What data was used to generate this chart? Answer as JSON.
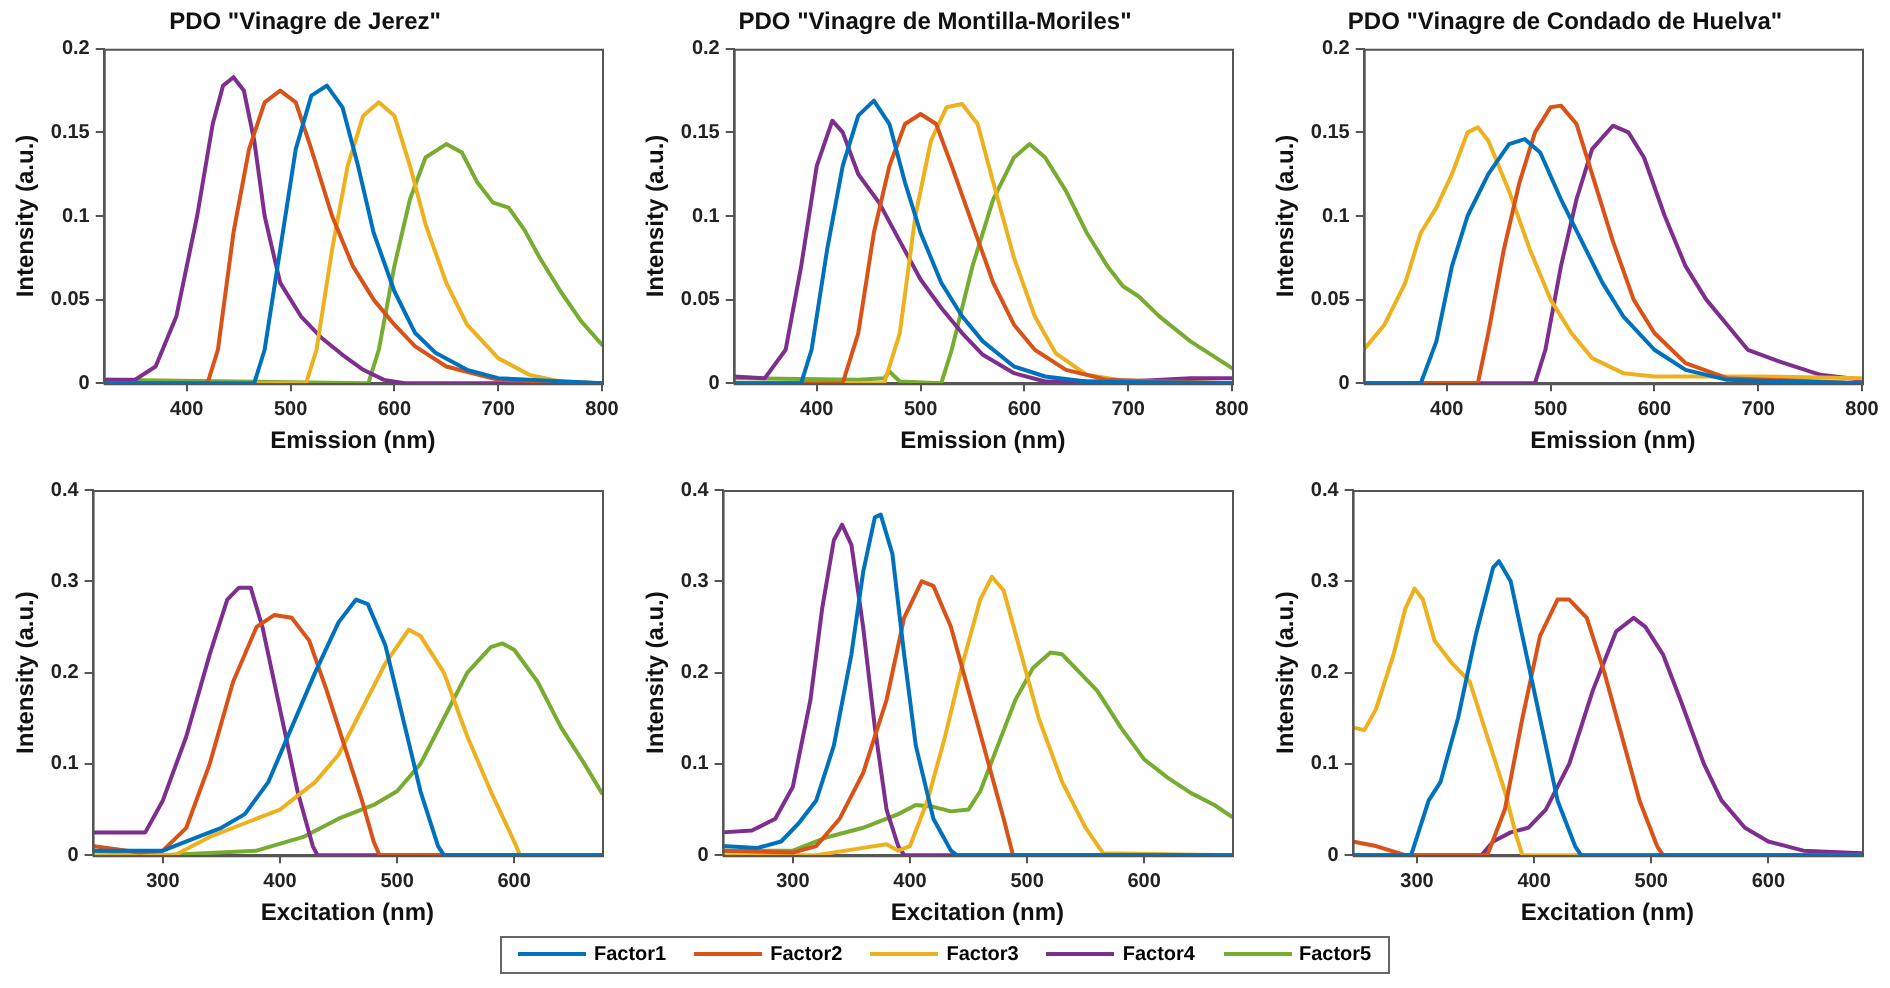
{
  "chart_data": [
    {
      "type": "line",
      "title": "PDO \"Vinagre de Jerez\"",
      "xlabel": "Emission (nm)",
      "ylabel": "Intensity (a.u.)",
      "xlim": [
        320,
        800
      ],
      "xticks": [
        400,
        500,
        600,
        700,
        800
      ],
      "ylim": [
        0,
        0.2
      ],
      "yticks": [
        0,
        0.05,
        0.1,
        0.15,
        0.2
      ],
      "legend": "bottom",
      "series": [
        {
          "name": "Factor1",
          "color": "#0072bd",
          "x": [
            320,
            465,
            475,
            490,
            505,
            520,
            535,
            550,
            565,
            580,
            600,
            620,
            640,
            670,
            700,
            800
          ],
          "values": [
            0,
            0,
            0.02,
            0.08,
            0.14,
            0.172,
            0.178,
            0.165,
            0.13,
            0.09,
            0.055,
            0.03,
            0.018,
            0.008,
            0.003,
            0
          ]
        },
        {
          "name": "Factor2",
          "color": "#d95319",
          "x": [
            320,
            420,
            430,
            445,
            460,
            475,
            490,
            505,
            520,
            540,
            560,
            580,
            600,
            620,
            650,
            700,
            800
          ],
          "values": [
            0,
            0,
            0.02,
            0.09,
            0.14,
            0.168,
            0.175,
            0.168,
            0.14,
            0.1,
            0.07,
            0.05,
            0.035,
            0.022,
            0.01,
            0.002,
            0
          ]
        },
        {
          "name": "Factor3",
          "color": "#edb120",
          "x": [
            320,
            515,
            525,
            540,
            555,
            570,
            585,
            600,
            615,
            630,
            650,
            670,
            700,
            730,
            760,
            800
          ],
          "values": [
            0,
            0,
            0.02,
            0.08,
            0.13,
            0.16,
            0.168,
            0.16,
            0.13,
            0.095,
            0.06,
            0.035,
            0.015,
            0.005,
            0.001,
            0
          ]
        },
        {
          "name": "Factor4",
          "color": "#7e2f8e",
          "x": [
            320,
            350,
            370,
            390,
            410,
            425,
            435,
            445,
            455,
            465,
            475,
            490,
            510,
            530,
            550,
            570,
            590,
            610,
            800
          ],
          "values": [
            0.002,
            0.002,
            0.01,
            0.04,
            0.1,
            0.155,
            0.178,
            0.183,
            0.175,
            0.145,
            0.1,
            0.06,
            0.04,
            0.027,
            0.017,
            0.008,
            0.002,
            0,
            0
          ]
        },
        {
          "name": "Factor5",
          "color": "#77ac30",
          "x": [
            320,
            575,
            585,
            600,
            615,
            630,
            650,
            665,
            680,
            695,
            710,
            725,
            740,
            760,
            780,
            800
          ],
          "values": [
            0.002,
            0,
            0.02,
            0.07,
            0.11,
            0.135,
            0.143,
            0.138,
            0.12,
            0.108,
            0.105,
            0.092,
            0.075,
            0.055,
            0.037,
            0.023
          ]
        }
      ]
    },
    {
      "type": "line",
      "title": "PDO \"Vinagre de Montilla-Moriles\"",
      "xlabel": "Emission (nm)",
      "ylabel": "Intensity (a.u.)",
      "xlim": [
        320,
        800
      ],
      "xticks": [
        400,
        500,
        600,
        700,
        800
      ],
      "ylim": [
        0,
        0.2
      ],
      "yticks": [
        0,
        0.05,
        0.1,
        0.15,
        0.2
      ],
      "series": [
        {
          "color": "#0072bd",
          "x": [
            320,
            385,
            395,
            410,
            425,
            440,
            455,
            470,
            485,
            500,
            520,
            540,
            560,
            590,
            620,
            660,
            800
          ],
          "values": [
            0,
            0,
            0.02,
            0.08,
            0.13,
            0.16,
            0.169,
            0.155,
            0.12,
            0.09,
            0.06,
            0.04,
            0.025,
            0.01,
            0.004,
            0.001,
            0
          ]
        },
        {
          "color": "#d95319",
          "x": [
            320,
            425,
            440,
            455,
            470,
            485,
            500,
            515,
            530,
            550,
            570,
            590,
            610,
            640,
            680,
            800
          ],
          "values": [
            0,
            0,
            0.03,
            0.09,
            0.13,
            0.155,
            0.161,
            0.155,
            0.13,
            0.095,
            0.06,
            0.035,
            0.02,
            0.008,
            0.002,
            0
          ]
        },
        {
          "color": "#edb120",
          "x": [
            320,
            465,
            480,
            495,
            510,
            525,
            540,
            555,
            570,
            590,
            610,
            630,
            660,
            700,
            800
          ],
          "values": [
            0,
            0,
            0.03,
            0.1,
            0.145,
            0.165,
            0.167,
            0.155,
            0.12,
            0.075,
            0.04,
            0.018,
            0.005,
            0.001,
            0
          ]
        },
        {
          "color": "#7e2f8e",
          "x": [
            320,
            350,
            370,
            385,
            400,
            415,
            425,
            440,
            460,
            480,
            500,
            520,
            540,
            560,
            590,
            620,
            700,
            760,
            800
          ],
          "values": [
            0.004,
            0.003,
            0.02,
            0.07,
            0.13,
            0.157,
            0.15,
            0.125,
            0.108,
            0.085,
            0.062,
            0.045,
            0.03,
            0.017,
            0.006,
            0.001,
            0.001,
            0.003,
            0.003
          ]
        },
        {
          "color": "#77ac30",
          "x": [
            320,
            440,
            465,
            470,
            480,
            520,
            530,
            550,
            570,
            590,
            605,
            620,
            640,
            660,
            680,
            695,
            710,
            730,
            760,
            800
          ],
          "values": [
            0.003,
            0.002,
            0.003,
            0.007,
            0.001,
            0,
            0.02,
            0.07,
            0.11,
            0.135,
            0.143,
            0.135,
            0.115,
            0.09,
            0.07,
            0.058,
            0.052,
            0.04,
            0.025,
            0.009
          ]
        }
      ]
    },
    {
      "type": "line",
      "title": "PDO \"Vinagre de Condado de Huelva\"",
      "xlabel": "Emission (nm)",
      "ylabel": "Intensity (a.u.)",
      "xlim": [
        320,
        800
      ],
      "xticks": [
        400,
        500,
        600,
        700,
        800
      ],
      "ylim": [
        0,
        0.2
      ],
      "yticks": [
        0,
        0.05,
        0.1,
        0.15,
        0.2
      ],
      "series": [
        {
          "color": "#0072bd",
          "x": [
            320,
            375,
            390,
            405,
            420,
            440,
            460,
            475,
            490,
            510,
            530,
            550,
            570,
            600,
            630,
            670,
            800
          ],
          "values": [
            0,
            0,
            0.025,
            0.07,
            0.1,
            0.125,
            0.143,
            0.146,
            0.138,
            0.11,
            0.085,
            0.06,
            0.04,
            0.02,
            0.008,
            0.002,
            0
          ]
        },
        {
          "color": "#d95319",
          "x": [
            320,
            430,
            440,
            455,
            470,
            485,
            500,
            510,
            525,
            540,
            560,
            580,
            600,
            630,
            670,
            800
          ],
          "values": [
            0,
            0,
            0.03,
            0.08,
            0.12,
            0.15,
            0.165,
            0.166,
            0.155,
            0.125,
            0.085,
            0.05,
            0.03,
            0.012,
            0.003,
            0
          ]
        },
        {
          "color": "#edb120",
          "x": [
            320,
            340,
            360,
            375,
            390,
            405,
            420,
            430,
            440,
            460,
            480,
            500,
            520,
            540,
            570,
            600,
            700,
            800
          ],
          "values": [
            0.02,
            0.035,
            0.06,
            0.09,
            0.105,
            0.125,
            0.15,
            0.153,
            0.145,
            0.115,
            0.08,
            0.05,
            0.03,
            0.015,
            0.006,
            0.004,
            0.004,
            0.003
          ]
        },
        {
          "color": "#7e2f8e",
          "x": [
            320,
            485,
            495,
            510,
            525,
            540,
            560,
            575,
            590,
            610,
            630,
            650,
            670,
            690,
            720,
            760,
            800
          ],
          "values": [
            0,
            0,
            0.02,
            0.07,
            0.11,
            0.14,
            0.154,
            0.15,
            0.135,
            0.1,
            0.07,
            0.05,
            0.035,
            0.02,
            0.013,
            0.005,
            0.002
          ]
        }
      ]
    },
    {
      "type": "line",
      "xlabel": "Excitation (nm)",
      "ylabel": "Intensity (a.u.)",
      "xlim": [
        240,
        675
      ],
      "xticks": [
        300,
        400,
        500,
        600
      ],
      "ylim": [
        0,
        0.4
      ],
      "yticks": [
        0,
        0.1,
        0.2,
        0.3,
        0.4
      ],
      "series": [
        {
          "color": "#0072bd",
          "x": [
            240,
            300,
            330,
            350,
            370,
            390,
            410,
            430,
            450,
            465,
            475,
            490,
            505,
            520,
            535,
            540,
            675
          ],
          "values": [
            0.005,
            0.005,
            0.02,
            0.03,
            0.045,
            0.08,
            0.14,
            0.2,
            0.255,
            0.28,
            0.275,
            0.23,
            0.15,
            0.07,
            0.01,
            0,
            0
          ]
        },
        {
          "color": "#d95319",
          "x": [
            240,
            280,
            300,
            320,
            340,
            360,
            380,
            395,
            410,
            425,
            440,
            455,
            470,
            480,
            485,
            675
          ],
          "values": [
            0.01,
            0.003,
            0.005,
            0.03,
            0.1,
            0.19,
            0.25,
            0.263,
            0.26,
            0.235,
            0.18,
            0.12,
            0.06,
            0.015,
            0,
            0
          ]
        },
        {
          "color": "#edb120",
          "x": [
            240,
            310,
            340,
            370,
            400,
            430,
            450,
            470,
            490,
            510,
            520,
            540,
            560,
            580,
            600,
            605,
            675
          ],
          "values": [
            0,
            0,
            0.02,
            0.035,
            0.05,
            0.08,
            0.11,
            0.16,
            0.21,
            0.247,
            0.24,
            0.2,
            0.13,
            0.07,
            0.015,
            0,
            0
          ]
        },
        {
          "color": "#7e2f8e",
          "x": [
            240,
            285,
            300,
            320,
            340,
            355,
            365,
            375,
            385,
            400,
            415,
            428,
            432,
            675
          ],
          "values": [
            0.025,
            0.025,
            0.06,
            0.13,
            0.22,
            0.28,
            0.293,
            0.293,
            0.25,
            0.16,
            0.07,
            0.01,
            0,
            0
          ]
        },
        {
          "color": "#77ac30",
          "x": [
            240,
            300,
            380,
            420,
            450,
            480,
            500,
            520,
            540,
            560,
            580,
            590,
            600,
            620,
            640,
            660,
            675
          ],
          "values": [
            0.005,
            0,
            0.005,
            0.02,
            0.04,
            0.055,
            0.07,
            0.1,
            0.15,
            0.2,
            0.228,
            0.232,
            0.225,
            0.19,
            0.14,
            0.1,
            0.068
          ]
        }
      ]
    },
    {
      "type": "line",
      "xlabel": "Excitation (nm)",
      "ylabel": "Intensity (a.u.)",
      "xlim": [
        240,
        675
      ],
      "xticks": [
        300,
        400,
        500,
        600
      ],
      "ylim": [
        0,
        0.4
      ],
      "yticks": [
        0,
        0.1,
        0.2,
        0.3,
        0.4
      ],
      "series": [
        {
          "color": "#0072bd",
          "x": [
            240,
            270,
            290,
            305,
            320,
            335,
            350,
            360,
            370,
            375,
            385,
            395,
            405,
            420,
            435,
            440,
            675
          ],
          "values": [
            0.01,
            0.008,
            0.015,
            0.035,
            0.06,
            0.12,
            0.22,
            0.31,
            0.37,
            0.373,
            0.33,
            0.22,
            0.12,
            0.04,
            0.005,
            0,
            0
          ]
        },
        {
          "color": "#d95319",
          "x": [
            240,
            300,
            320,
            340,
            360,
            380,
            395,
            410,
            420,
            435,
            450,
            465,
            480,
            488,
            675
          ],
          "values": [
            0.005,
            0.003,
            0.01,
            0.04,
            0.09,
            0.17,
            0.26,
            0.3,
            0.295,
            0.25,
            0.18,
            0.11,
            0.04,
            0,
            0
          ]
        },
        {
          "color": "#edb120",
          "x": [
            240,
            320,
            360,
            380,
            390,
            400,
            415,
            430,
            445,
            460,
            470,
            480,
            495,
            510,
            530,
            550,
            565,
            675
          ],
          "values": [
            0,
            0,
            0.008,
            0.012,
            0.005,
            0.01,
            0.06,
            0.13,
            0.21,
            0.28,
            0.305,
            0.29,
            0.22,
            0.15,
            0.08,
            0.03,
            0.002,
            0
          ]
        },
        {
          "color": "#7e2f8e",
          "x": [
            240,
            265,
            285,
            300,
            315,
            325,
            335,
            342,
            350,
            360,
            370,
            380,
            390,
            395,
            675
          ],
          "values": [
            0.025,
            0.027,
            0.04,
            0.075,
            0.17,
            0.27,
            0.345,
            0.362,
            0.34,
            0.25,
            0.14,
            0.05,
            0.01,
            0,
            0
          ]
        },
        {
          "color": "#77ac30",
          "x": [
            240,
            300,
            330,
            360,
            390,
            405,
            420,
            435,
            450,
            460,
            475,
            490,
            505,
            520,
            530,
            545,
            560,
            580,
            600,
            620,
            640,
            660,
            675
          ],
          "values": [
            0.005,
            0.005,
            0.02,
            0.03,
            0.045,
            0.055,
            0.053,
            0.048,
            0.05,
            0.07,
            0.12,
            0.17,
            0.205,
            0.222,
            0.22,
            0.2,
            0.18,
            0.14,
            0.105,
            0.085,
            0.068,
            0.055,
            0.042
          ]
        }
      ]
    },
    {
      "type": "line",
      "xlabel": "Excitation (nm)",
      "ylabel": "Intensity (a.u.)",
      "xlim": [
        245,
        680
      ],
      "xticks": [
        300,
        400,
        500,
        600
      ],
      "ylim": [
        0,
        0.4
      ],
      "yticks": [
        0,
        0.1,
        0.2,
        0.3,
        0.4
      ],
      "series": [
        {
          "color": "#0072bd",
          "x": [
            245,
            295,
            300,
            310,
            320,
            335,
            350,
            365,
            370,
            380,
            390,
            405,
            420,
            435,
            440,
            680
          ],
          "values": [
            0,
            0,
            0.02,
            0.06,
            0.08,
            0.15,
            0.24,
            0.315,
            0.322,
            0.3,
            0.24,
            0.15,
            0.06,
            0.01,
            0,
            0
          ]
        },
        {
          "color": "#d95319",
          "x": [
            245,
            265,
            290,
            360,
            375,
            390,
            405,
            420,
            430,
            445,
            460,
            475,
            490,
            505,
            510,
            680
          ],
          "values": [
            0.015,
            0.01,
            0,
            0,
            0.05,
            0.15,
            0.24,
            0.28,
            0.28,
            0.26,
            0.2,
            0.13,
            0.06,
            0.01,
            0,
            0
          ]
        },
        {
          "color": "#edb120",
          "x": [
            245,
            255,
            265,
            280,
            290,
            298,
            305,
            315,
            330,
            345,
            355,
            365,
            375,
            385,
            390,
            680
          ],
          "values": [
            0.14,
            0.137,
            0.16,
            0.22,
            0.27,
            0.292,
            0.28,
            0.235,
            0.21,
            0.19,
            0.15,
            0.11,
            0.07,
            0.02,
            0,
            0
          ]
        },
        {
          "color": "#7e2f8e",
          "x": [
            245,
            355,
            365,
            380,
            395,
            410,
            430,
            450,
            470,
            485,
            495,
            510,
            525,
            545,
            560,
            580,
            600,
            630,
            680
          ],
          "values": [
            0,
            0,
            0.015,
            0.025,
            0.03,
            0.05,
            0.1,
            0.18,
            0.245,
            0.26,
            0.25,
            0.22,
            0.17,
            0.1,
            0.06,
            0.03,
            0.015,
            0.005,
            0.002
          ]
        }
      ]
    }
  ]
}
